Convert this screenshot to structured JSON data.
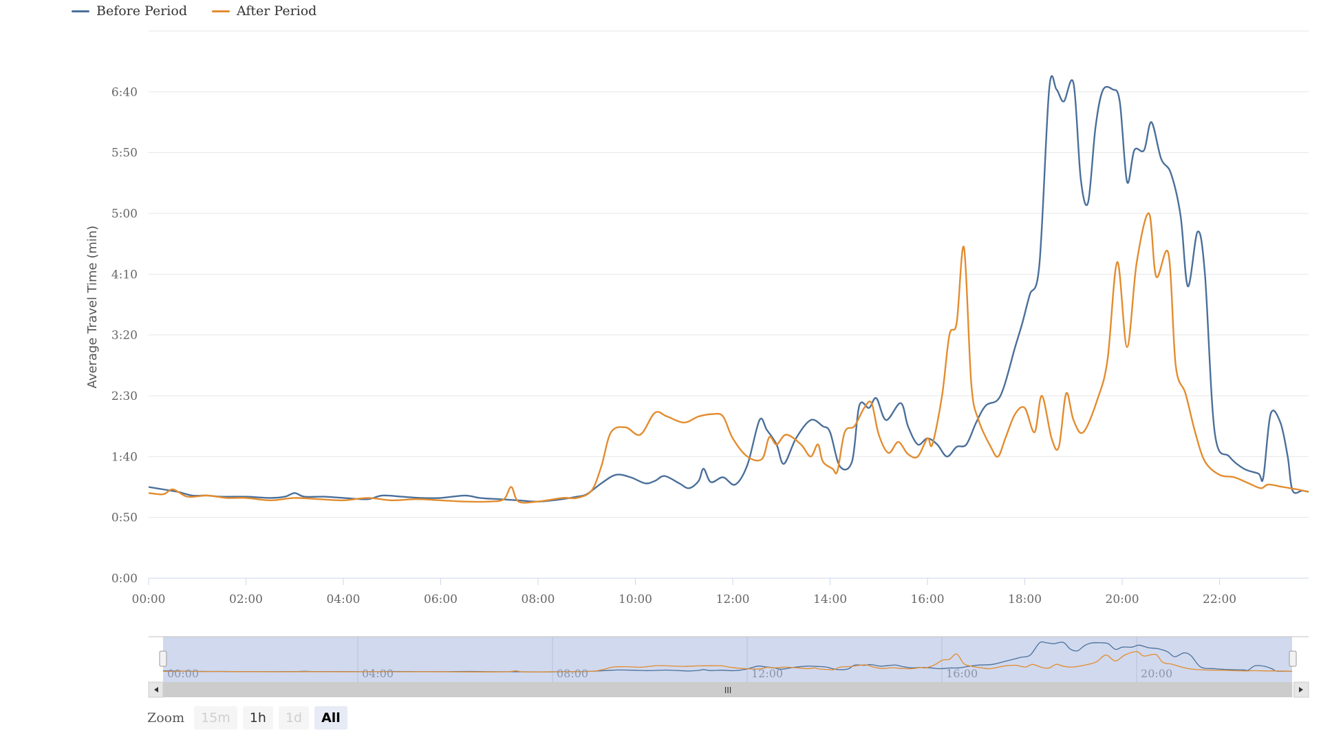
{
  "legend": [
    {
      "name": "Before Period",
      "color": "#4a6f9a"
    },
    {
      "name": "After Period",
      "color": "#e38c2e"
    }
  ],
  "zoom": {
    "label": "Zoom",
    "buttons": [
      {
        "label": "15m",
        "state": "disabled"
      },
      {
        "label": "1h",
        "state": "normal"
      },
      {
        "label": "1d",
        "state": "disabled"
      },
      {
        "label": "All",
        "state": "active"
      }
    ]
  },
  "navigator": {
    "labels": [
      "00:00",
      "04:00",
      "08:00",
      "12:00",
      "16:00",
      "20:00"
    ],
    "handle_glyph": "III"
  },
  "chart_data": {
    "type": "line",
    "ylabel": "Average Travel Time (min)",
    "xlabel": "",
    "title": "",
    "xlim_hours": [
      0,
      23.83
    ],
    "ylim_seconds": [
      0,
      450
    ],
    "y_ticks": [
      {
        "label": "0:00",
        "value": 0
      },
      {
        "label": "0:50",
        "value": 50
      },
      {
        "label": "1:40",
        "value": 100
      },
      {
        "label": "2:30",
        "value": 150
      },
      {
        "label": "3:20",
        "value": 200
      },
      {
        "label": "4:10",
        "value": 250
      },
      {
        "label": "5:00",
        "value": 300
      },
      {
        "label": "5:50",
        "value": 350
      },
      {
        "label": "6:40",
        "value": 400
      }
    ],
    "x_ticks": [
      {
        "label": "00:00",
        "value": 0
      },
      {
        "label": "02:00",
        "value": 2
      },
      {
        "label": "04:00",
        "value": 4
      },
      {
        "label": "06:00",
        "value": 6
      },
      {
        "label": "08:00",
        "value": 8
      },
      {
        "label": "10:00",
        "value": 10
      },
      {
        "label": "12:00",
        "value": 12
      },
      {
        "label": "14:00",
        "value": 14
      },
      {
        "label": "16:00",
        "value": 16
      },
      {
        "label": "18:00",
        "value": 18
      },
      {
        "label": "20:00",
        "value": 20
      },
      {
        "label": "22:00",
        "value": 22
      }
    ],
    "grid": true,
    "legend_position": "top-left",
    "series": [
      {
        "name": "Before Period",
        "color": "#4a6f9a",
        "points": [
          [
            0,
            75
          ],
          [
            0.3,
            73
          ],
          [
            0.6,
            71
          ],
          [
            0.9,
            68
          ],
          [
            1.2,
            68
          ],
          [
            1.5,
            67
          ],
          [
            2,
            67
          ],
          [
            2.5,
            66
          ],
          [
            2.8,
            67
          ],
          [
            3,
            70
          ],
          [
            3.2,
            67
          ],
          [
            3.6,
            67
          ],
          [
            4,
            66
          ],
          [
            4.5,
            65
          ],
          [
            4.8,
            68
          ],
          [
            5.2,
            67
          ],
          [
            5.6,
            66
          ],
          [
            6,
            66
          ],
          [
            6.5,
            68
          ],
          [
            6.8,
            66
          ],
          [
            7.2,
            65
          ],
          [
            7.6,
            64
          ],
          [
            8,
            63
          ],
          [
            8.5,
            65
          ],
          [
            8.8,
            67
          ],
          [
            9,
            69
          ],
          [
            9.3,
            78
          ],
          [
            9.6,
            85
          ],
          [
            9.9,
            83
          ],
          [
            10.2,
            78
          ],
          [
            10.4,
            80
          ],
          [
            10.6,
            84
          ],
          [
            10.9,
            78
          ],
          [
            11.1,
            74
          ],
          [
            11.3,
            80
          ],
          [
            11.4,
            90
          ],
          [
            11.55,
            79
          ],
          [
            11.8,
            83
          ],
          [
            12.05,
            77
          ],
          [
            12.3,
            93
          ],
          [
            12.55,
            130
          ],
          [
            12.7,
            122
          ],
          [
            12.9,
            110
          ],
          [
            13.05,
            94
          ],
          [
            13.3,
            115
          ],
          [
            13.6,
            130
          ],
          [
            13.85,
            125
          ],
          [
            14,
            120
          ],
          [
            14.2,
            92
          ],
          [
            14.45,
            96
          ],
          [
            14.6,
            142
          ],
          [
            14.8,
            140
          ],
          [
            14.95,
            148
          ],
          [
            15.15,
            130
          ],
          [
            15.45,
            144
          ],
          [
            15.6,
            125
          ],
          [
            15.8,
            110
          ],
          [
            16,
            115
          ],
          [
            16.2,
            110
          ],
          [
            16.4,
            100
          ],
          [
            16.6,
            108
          ],
          [
            16.8,
            110
          ],
          [
            17,
            128
          ],
          [
            17.2,
            142
          ],
          [
            17.5,
            150
          ],
          [
            17.8,
            190
          ],
          [
            17.95,
            210
          ],
          [
            18.1,
            233
          ],
          [
            18.3,
            258
          ],
          [
            18.5,
            402
          ],
          [
            18.65,
            402
          ],
          [
            18.8,
            392
          ],
          [
            19.0,
            407
          ],
          [
            19.15,
            328
          ],
          [
            19.3,
            309
          ],
          [
            19.45,
            370
          ],
          [
            19.6,
            401
          ],
          [
            19.8,
            402
          ],
          [
            19.95,
            392
          ],
          [
            20.1,
            326
          ],
          [
            20.25,
            352
          ],
          [
            20.45,
            352
          ],
          [
            20.6,
            375
          ],
          [
            20.8,
            345
          ],
          [
            21.0,
            333
          ],
          [
            21.2,
            298
          ],
          [
            21.35,
            240
          ],
          [
            21.55,
            285
          ],
          [
            21.7,
            250
          ],
          [
            21.9,
            120
          ],
          [
            22.2,
            100
          ],
          [
            22.5,
            90
          ],
          [
            22.8,
            86
          ],
          [
            22.9,
            83
          ],
          [
            23.05,
            135
          ],
          [
            23.25,
            128
          ],
          [
            23.4,
            100
          ],
          [
            23.5,
            72
          ],
          [
            23.7,
            72
          ],
          [
            23.83,
            71
          ]
        ]
      },
      {
        "name": "After Period",
        "color": "#e38c2e",
        "points": [
          [
            0,
            70
          ],
          [
            0.3,
            69
          ],
          [
            0.5,
            73
          ],
          [
            0.8,
            67
          ],
          [
            1.2,
            68
          ],
          [
            1.6,
            66
          ],
          [
            2,
            66
          ],
          [
            2.5,
            64
          ],
          [
            3,
            66
          ],
          [
            3.5,
            65
          ],
          [
            4,
            64
          ],
          [
            4.5,
            66
          ],
          [
            5,
            64
          ],
          [
            5.5,
            65
          ],
          [
            6,
            64
          ],
          [
            6.5,
            63
          ],
          [
            7,
            63
          ],
          [
            7.3,
            65
          ],
          [
            7.45,
            75
          ],
          [
            7.6,
            63
          ],
          [
            8,
            63
          ],
          [
            8.5,
            66
          ],
          [
            8.8,
            66
          ],
          [
            9.1,
            72
          ],
          [
            9.3,
            92
          ],
          [
            9.5,
            120
          ],
          [
            9.8,
            124
          ],
          [
            10.1,
            118
          ],
          [
            10.4,
            136
          ],
          [
            10.65,
            133
          ],
          [
            11,
            128
          ],
          [
            11.3,
            133
          ],
          [
            11.6,
            135
          ],
          [
            11.8,
            133
          ],
          [
            12,
            115
          ],
          [
            12.3,
            100
          ],
          [
            12.6,
            98
          ],
          [
            12.75,
            116
          ],
          [
            12.9,
            110
          ],
          [
            13.1,
            118
          ],
          [
            13.4,
            110
          ],
          [
            13.6,
            100
          ],
          [
            13.75,
            110
          ],
          [
            13.85,
            96
          ],
          [
            14.05,
            90
          ],
          [
            14.15,
            88
          ],
          [
            14.3,
            120
          ],
          [
            14.5,
            125
          ],
          [
            14.7,
            140
          ],
          [
            14.85,
            144
          ],
          [
            15,
            118
          ],
          [
            15.2,
            103
          ],
          [
            15.4,
            112
          ],
          [
            15.6,
            102
          ],
          [
            15.8,
            100
          ],
          [
            16.0,
            115
          ],
          [
            16.1,
            110
          ],
          [
            16.3,
            150
          ],
          [
            16.45,
            200
          ],
          [
            16.6,
            210
          ],
          [
            16.75,
            272
          ],
          [
            16.9,
            160
          ],
          [
            17.05,
            130
          ],
          [
            17.3,
            108
          ],
          [
            17.45,
            100
          ],
          [
            17.6,
            115
          ],
          [
            17.8,
            135
          ],
          [
            18.0,
            140
          ],
          [
            18.2,
            120
          ],
          [
            18.35,
            150
          ],
          [
            18.55,
            115
          ],
          [
            18.7,
            108
          ],
          [
            18.85,
            152
          ],
          [
            19.0,
            130
          ],
          [
            19.2,
            120
          ],
          [
            19.5,
            148
          ],
          [
            19.7,
            180
          ],
          [
            19.9,
            260
          ],
          [
            20.1,
            190
          ],
          [
            20.3,
            260
          ],
          [
            20.55,
            300
          ],
          [
            20.7,
            248
          ],
          [
            20.95,
            267
          ],
          [
            21.1,
            175
          ],
          [
            21.3,
            152
          ],
          [
            21.5,
            120
          ],
          [
            21.7,
            96
          ],
          [
            22.0,
            85
          ],
          [
            22.3,
            83
          ],
          [
            22.6,
            78
          ],
          [
            22.85,
            74
          ],
          [
            23.0,
            77
          ],
          [
            23.3,
            75
          ],
          [
            23.6,
            73
          ],
          [
            23.83,
            71
          ]
        ]
      }
    ]
  }
}
